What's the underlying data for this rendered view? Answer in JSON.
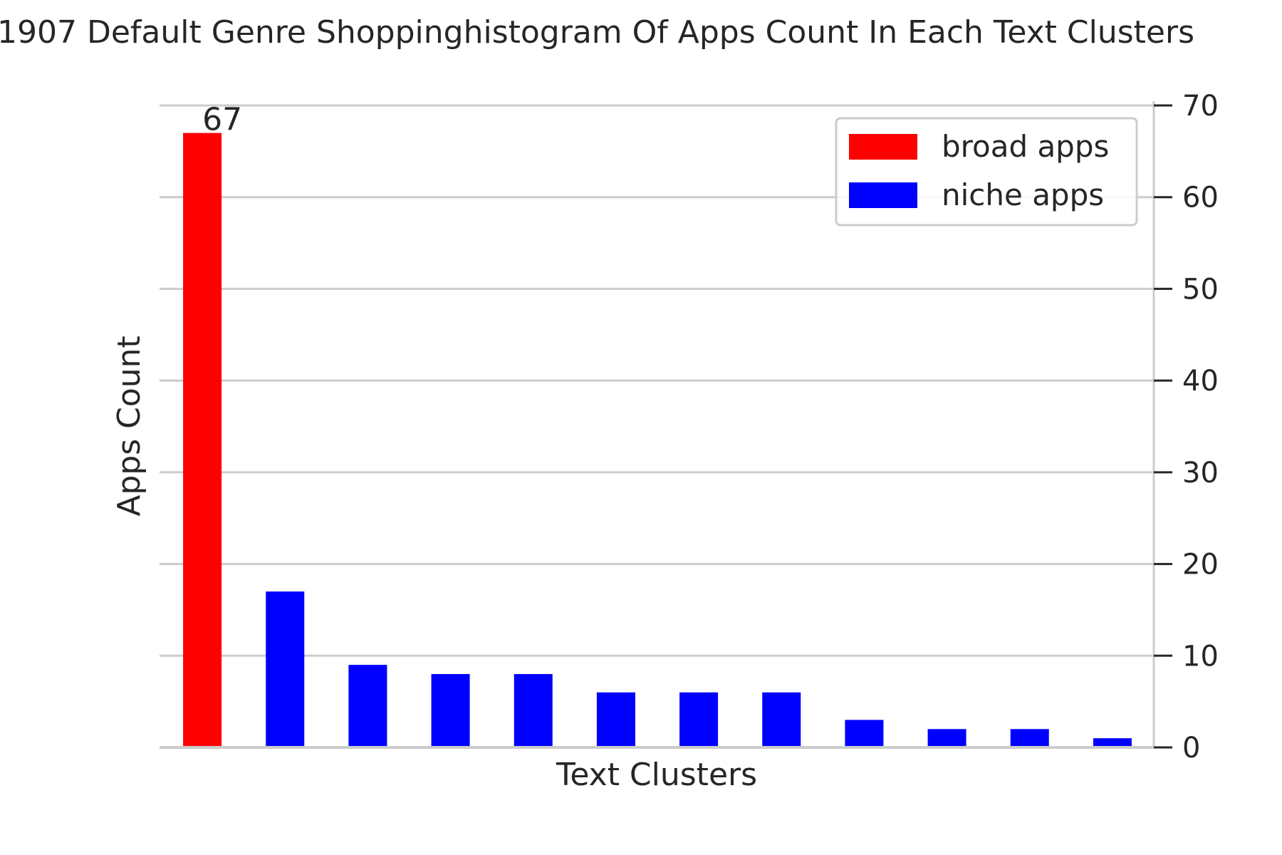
{
  "chart_data": {
    "type": "bar",
    "title": "1907 Default Genre Shoppinghistogram Of Apps Count In Each Text Clusters",
    "xlabel": "Text Clusters",
    "ylabel": "Apps Count",
    "ylim": [
      0,
      70
    ],
    "yticks": [
      0,
      10,
      20,
      30,
      40,
      50,
      60,
      70
    ],
    "y_axis_side": "right",
    "grid": "horizontal",
    "legend_position": "top-right",
    "values": [
      67,
      17,
      9,
      8,
      8,
      6,
      6,
      6,
      3,
      2,
      2,
      1
    ],
    "bar_series": [
      "broad",
      "niche",
      "niche",
      "niche",
      "niche",
      "niche",
      "niche",
      "niche",
      "niche",
      "niche",
      "niche",
      "niche"
    ],
    "data_labels": [
      {
        "index": 0,
        "text": "67"
      }
    ],
    "series": [
      {
        "key": "broad",
        "name": "broad apps",
        "color": "#ff0000"
      },
      {
        "key": "niche",
        "name": "niche apps",
        "color": "#0000ff"
      }
    ]
  }
}
